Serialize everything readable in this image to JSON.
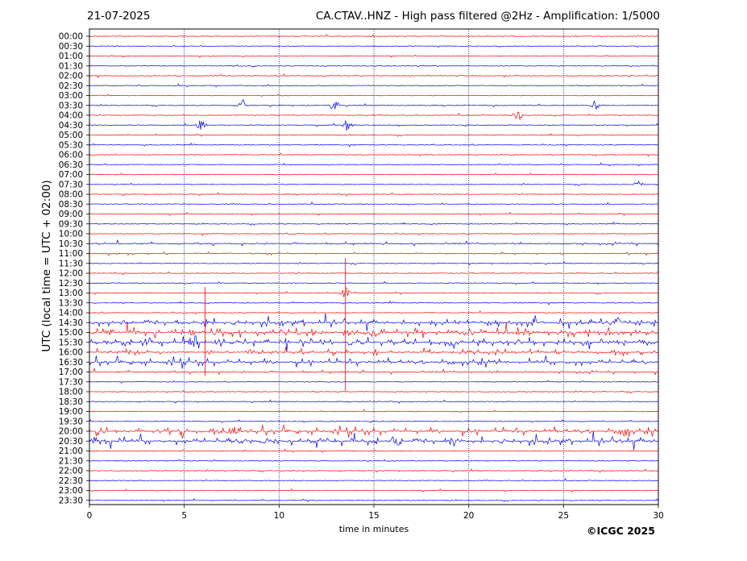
{
  "header": {
    "date": "21-07-2025",
    "title": "CA.CTAV..HNZ - High pass filtered @2Hz - Amplification: 1/5000"
  },
  "footer": {
    "copyright": "©ICGC 2025"
  },
  "colors": {
    "trace_even": "#ff0000",
    "trace_odd": "#0000ff",
    "gridline": "#000080",
    "axis": "#000000"
  },
  "chart_data": {
    "type": "line",
    "title": "CA.CTAV..HNZ - High pass filtered @2Hz - Amplification: 1/5000",
    "xlabel": "time in minutes",
    "ylabel": "UTC (local time = UTC + 02:00)",
    "xlim": [
      0,
      30
    ],
    "x_ticks": [
      0,
      5,
      10,
      15,
      20,
      25,
      30
    ],
    "x_tick_labels": [
      "0",
      "5",
      "10",
      "15",
      "20",
      "25",
      "30"
    ],
    "vertical_grid_minutes": [
      5,
      10,
      15,
      20,
      25
    ],
    "grid": true,
    "row_labels": [
      "00:00",
      "00:30",
      "01:00",
      "01:30",
      "02:00",
      "02:30",
      "03:00",
      "03:30",
      "04:00",
      "04:30",
      "05:00",
      "05:30",
      "06:00",
      "06:30",
      "07:00",
      "07:30",
      "08:00",
      "08:30",
      "09:00",
      "09:30",
      "10:00",
      "10:30",
      "11:00",
      "11:30",
      "12:00",
      "12:30",
      "13:00",
      "13:30",
      "14:00",
      "14:30",
      "15:00",
      "15:30",
      "16:00",
      "16:30",
      "17:00",
      "17:30",
      "18:00",
      "18:30",
      "19:00",
      "19:30",
      "20:00",
      "20:30",
      "21:00",
      "21:30",
      "22:00",
      "22:30",
      "23:00",
      "23:30"
    ],
    "row_activity": [
      0.05,
      0.05,
      0.05,
      0.05,
      0.05,
      0.05,
      0.05,
      0.15,
      0.1,
      0.15,
      0.05,
      0.08,
      0.05,
      0.1,
      0.05,
      0.15,
      0.15,
      0.05,
      0.05,
      0.05,
      0.05,
      0.35,
      0.25,
      0.05,
      0.05,
      0.05,
      0.05,
      0.05,
      0.08,
      0.8,
      0.9,
      0.85,
      0.6,
      0.75,
      0.35,
      0.05,
      0.1,
      0.05,
      0.05,
      0.05,
      0.75,
      0.85,
      0.05,
      0.05,
      0.05,
      0.05,
      0.05,
      0.05
    ],
    "events": [
      {
        "row": "03:30",
        "minute": 8.1
      },
      {
        "row": "03:30",
        "minute": 12.9
      },
      {
        "row": "03:30",
        "minute": 26.6
      },
      {
        "row": "04:00",
        "minute": 22.6
      },
      {
        "row": "04:30",
        "minute": 5.9
      },
      {
        "row": "04:30",
        "minute": 13.6
      },
      {
        "row": "07:30",
        "minute": 29.0
      },
      {
        "row": "13:00",
        "minute": 13.5
      },
      {
        "row": "14:30",
        "minute": 6.1
      },
      {
        "row": "14:30",
        "minute": 27.9
      },
      {
        "row": "15:00",
        "minute": 15.0
      },
      {
        "row": "15:30",
        "minute": 5.4
      },
      {
        "row": "20:00",
        "minute": 7.5
      },
      {
        "row": "20:00",
        "minute": 28.2
      },
      {
        "row": "20:30",
        "minute": 19.2
      },
      {
        "row": "20:30",
        "minute": 16.2
      }
    ]
  }
}
